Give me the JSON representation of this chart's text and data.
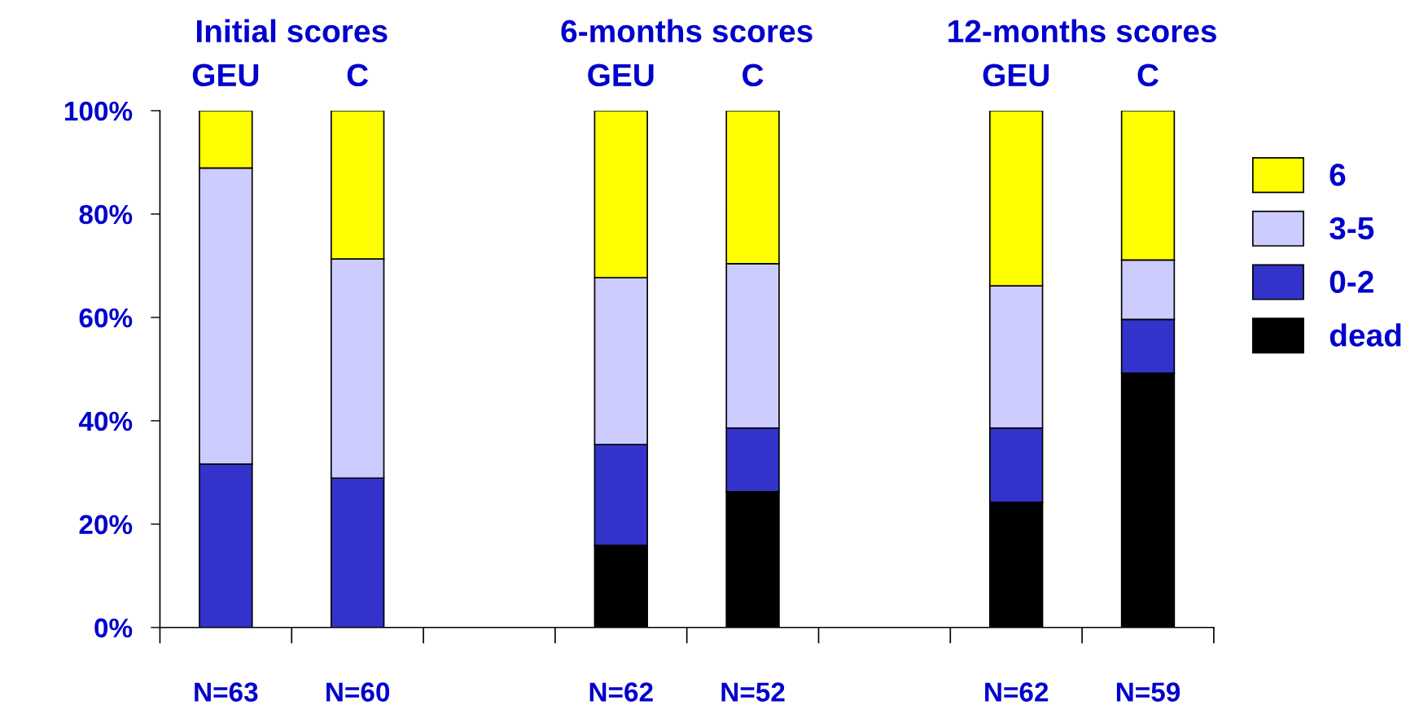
{
  "chart_data": {
    "type": "bar",
    "stacked": true,
    "categories": [
      "N=63",
      "N=60",
      null,
      "N=62",
      "N=52",
      null,
      "N=62",
      "N=59"
    ],
    "series": [
      {
        "name": "dead",
        "color": "#000000",
        "values": [
          0,
          0,
          null,
          15.9,
          26.3,
          null,
          24.2,
          49.2
        ]
      },
      {
        "name": "0-2",
        "color": "#3333cc",
        "values": [
          31.6,
          28.9,
          null,
          19.5,
          12.3,
          null,
          14.4,
          10.4
        ]
      },
      {
        "name": "3-5",
        "color": "#ccccff",
        "values": [
          57.3,
          42.4,
          null,
          32.3,
          31.8,
          null,
          27.5,
          11.5
        ]
      },
      {
        "name": "6",
        "color": "#ffff00",
        "values": [
          11.1,
          28.7,
          null,
          32.3,
          29.6,
          null,
          33.9,
          28.9
        ]
      }
    ],
    "ylim": [
      0,
      100
    ],
    "yticks": [
      {
        "value": 0,
        "label": "0%"
      },
      {
        "value": 20,
        "label": "20%"
      },
      {
        "value": 40,
        "label": "40%"
      },
      {
        "value": 60,
        "label": "60%"
      },
      {
        "value": 80,
        "label": "80%"
      },
      {
        "value": 100,
        "label": "100%"
      }
    ],
    "grid": false,
    "legend": "right",
    "annotations": [
      "Initial scores",
      "6-months scores",
      "12-months scores",
      "GEU",
      "C",
      "GEU",
      "C",
      "GEU",
      "C"
    ]
  }
}
